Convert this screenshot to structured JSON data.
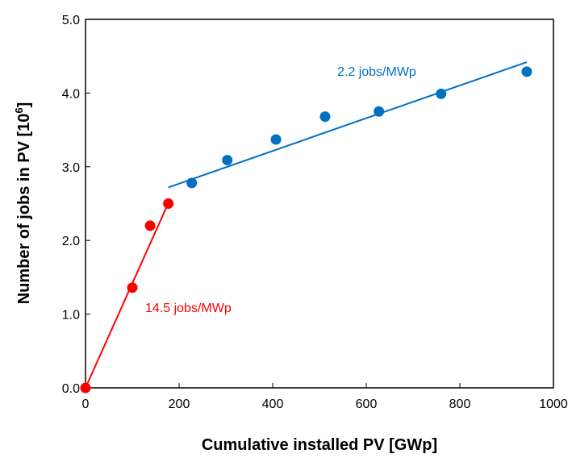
{
  "chart_data": {
    "type": "scatter",
    "xlabel": "Cumulative installed PV [GWp]",
    "ylabel_main": "Number of jobs in PV [10",
    "ylabel_sup": "6",
    "ylabel_end": "]",
    "xlim": [
      0,
      1000
    ],
    "ylim": [
      0,
      5
    ],
    "x_ticks": [
      0,
      200,
      400,
      600,
      800,
      1000
    ],
    "x_tick_labels": [
      "0",
      "200",
      "400",
      "600",
      "800",
      "1000"
    ],
    "y_ticks": [
      0,
      1,
      2,
      3,
      4,
      5
    ],
    "y_tick_labels": [
      "0.0",
      "1.0",
      "2.0",
      "3.0",
      "4.0",
      "5.0"
    ],
    "grid": false,
    "series": [
      {
        "color": "#ff0000",
        "points": [
          {
            "x": 0,
            "y": 0.0
          },
          {
            "x": 100,
            "y": 1.36
          },
          {
            "x": 138,
            "y": 2.2
          },
          {
            "x": 177,
            "y": 2.5
          }
        ],
        "fit_line": {
          "x": [
            0,
            180
          ],
          "y": [
            0.0,
            2.55
          ]
        },
        "annotation": "14.5 jobs/MWp"
      },
      {
        "color": "#0070c0",
        "points": [
          {
            "x": 227,
            "y": 2.78
          },
          {
            "x": 303,
            "y": 3.09
          },
          {
            "x": 407,
            "y": 3.37
          },
          {
            "x": 512,
            "y": 3.68
          },
          {
            "x": 627,
            "y": 3.75
          },
          {
            "x": 760,
            "y": 3.99
          },
          {
            "x": 943,
            "y": 4.29
          }
        ],
        "fit_line": {
          "x": [
            177,
            943
          ],
          "y": [
            2.72,
            4.42
          ]
        },
        "annotation": "2.2 jobs/MWp"
      }
    ]
  }
}
